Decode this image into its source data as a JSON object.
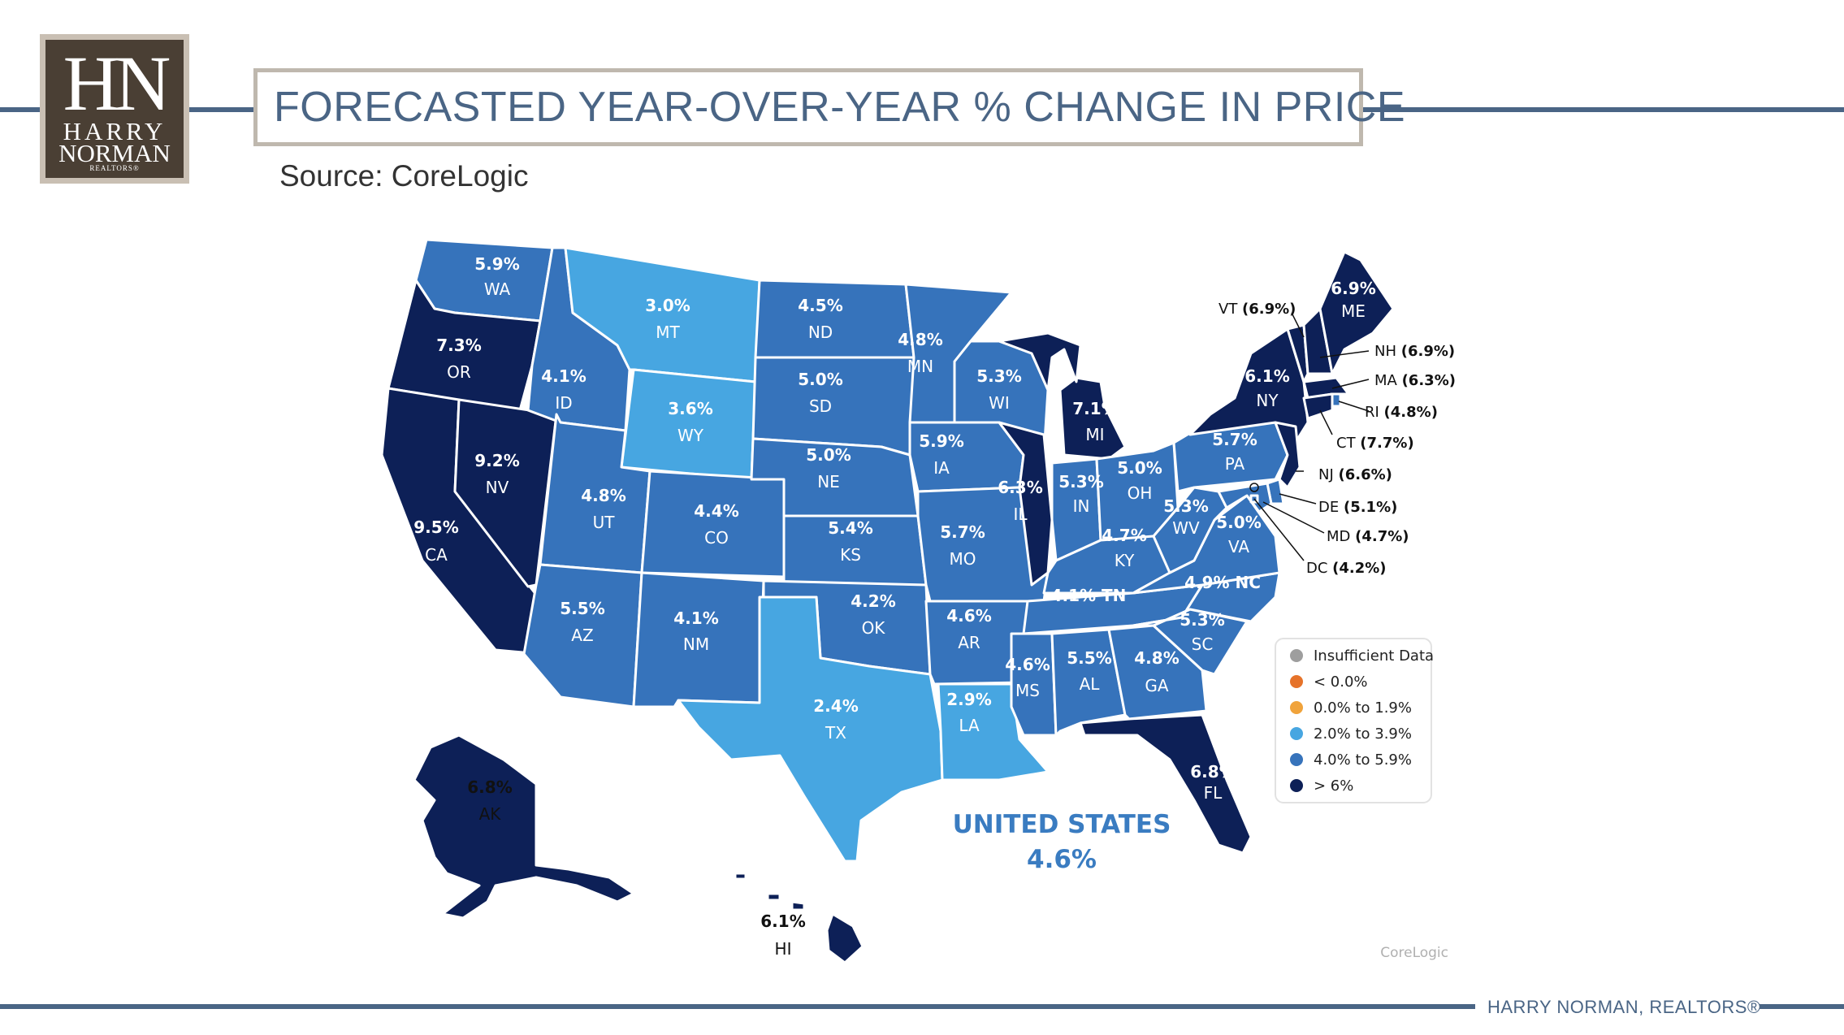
{
  "header": {
    "title": "FORECASTED YEAR-OVER-YEAR % CHANGE IN PRICE",
    "source": "Source: CoreLogic"
  },
  "logo": {
    "monogram": "HN",
    "line1": "HARRY",
    "line2": "NORMAN",
    "line3": "REALTORS®"
  },
  "footer": {
    "brand": "HARRY NORMAN, REALTORS®"
  },
  "colors": {
    "gt6": "#0d2057",
    "c4to5_9": "#3673bb",
    "c2to3_9": "#47a6e1",
    "c0to1_9": "#f0a33b",
    "lt0": "#e6732a",
    "insufficient": "#9e9e9e",
    "rule": "#4a6585",
    "national": "#3a7cc1"
  },
  "map": {
    "national": {
      "label": "UNITED STATES",
      "value": "4.6%"
    },
    "watermark": "CoreLogic",
    "states": {
      "WA": {
        "value": "5.9%",
        "abbr": "WA"
      },
      "OR": {
        "value": "7.3%",
        "abbr": "OR"
      },
      "CA": {
        "value": "9.5%",
        "abbr": "CA"
      },
      "NV": {
        "value": "9.2%",
        "abbr": "NV"
      },
      "ID": {
        "value": "4.1%",
        "abbr": "ID"
      },
      "MT": {
        "value": "3.0%",
        "abbr": "MT"
      },
      "WY": {
        "value": "3.6%",
        "abbr": "WY"
      },
      "UT": {
        "value": "4.8%",
        "abbr": "UT"
      },
      "CO": {
        "value": "4.4%",
        "abbr": "CO"
      },
      "AZ": {
        "value": "5.5%",
        "abbr": "AZ"
      },
      "NM": {
        "value": "4.1%",
        "abbr": "NM"
      },
      "ND": {
        "value": "4.5%",
        "abbr": "ND"
      },
      "SD": {
        "value": "5.0%",
        "abbr": "SD"
      },
      "NE": {
        "value": "5.0%",
        "abbr": "NE"
      },
      "KS": {
        "value": "5.4%",
        "abbr": "KS"
      },
      "OK": {
        "value": "4.2%",
        "abbr": "OK"
      },
      "TX": {
        "value": "2.4%",
        "abbr": "TX"
      },
      "MN": {
        "value": "4.8%",
        "abbr": "MN"
      },
      "IA": {
        "value": "5.9%",
        "abbr": "IA"
      },
      "MO": {
        "value": "5.7%",
        "abbr": "MO"
      },
      "AR": {
        "value": "4.6%",
        "abbr": "AR"
      },
      "LA": {
        "value": "2.9%",
        "abbr": "LA"
      },
      "WI": {
        "value": "5.3%",
        "abbr": "WI"
      },
      "IL": {
        "value": "6.3%",
        "abbr": "IL"
      },
      "MI": {
        "value": "7.1%",
        "abbr": "MI"
      },
      "IN": {
        "value": "5.3%",
        "abbr": "IN"
      },
      "OH": {
        "value": "5.0%",
        "abbr": "OH"
      },
      "KY": {
        "value": "4.7%",
        "abbr": "KY"
      },
      "TN": {
        "value": "4.1%",
        "abbr": "TN"
      },
      "MS": {
        "value": "4.6%",
        "abbr": "MS"
      },
      "AL": {
        "value": "5.5%",
        "abbr": "AL"
      },
      "GA": {
        "value": "4.8%",
        "abbr": "GA"
      },
      "FL": {
        "value": "6.8%",
        "abbr": "FL"
      },
      "SC": {
        "value": "5.3%",
        "abbr": "SC"
      },
      "NC": {
        "value": "4.9%",
        "abbr": "NC"
      },
      "VA": {
        "value": "5.0%",
        "abbr": "VA"
      },
      "WV": {
        "value": "5.3%",
        "abbr": "WV"
      },
      "PA": {
        "value": "5.7%",
        "abbr": "PA"
      },
      "NY": {
        "value": "6.1%",
        "abbr": "NY"
      },
      "ME": {
        "value": "6.9%",
        "abbr": "ME"
      },
      "AK": {
        "value": "6.8%",
        "abbr": "AK"
      },
      "HI": {
        "value": "6.1%",
        "abbr": "HI"
      }
    },
    "callouts": {
      "VT": {
        "abbr": "VT",
        "value": "(6.9%)"
      },
      "NH": {
        "abbr": "NH",
        "value": "(6.9%)"
      },
      "MA": {
        "abbr": "MA",
        "value": "(6.3%)"
      },
      "RI": {
        "abbr": "RI",
        "value": "(4.8%)"
      },
      "CT": {
        "abbr": "CT",
        "value": "(7.7%)"
      },
      "NJ": {
        "abbr": "NJ",
        "value": "(6.6%)"
      },
      "DE": {
        "abbr": "DE",
        "value": "(5.1%)"
      },
      "MD": {
        "abbr": "MD",
        "value": "(4.7%)"
      },
      "DC": {
        "abbr": "DC",
        "value": "(4.2%)"
      }
    }
  },
  "legend": {
    "items": [
      {
        "label": "Insufficient Data",
        "color": "#9e9e9e"
      },
      {
        "label": "< 0.0%",
        "color": "#e6732a"
      },
      {
        "label": "0.0% to 1.9%",
        "color": "#f0a33b"
      },
      {
        "label": "2.0% to 3.9%",
        "color": "#47a6e1"
      },
      {
        "label": "4.0% to 5.9%",
        "color": "#3673bb"
      },
      {
        "label": "> 6%",
        "color": "#0d2057"
      }
    ]
  }
}
